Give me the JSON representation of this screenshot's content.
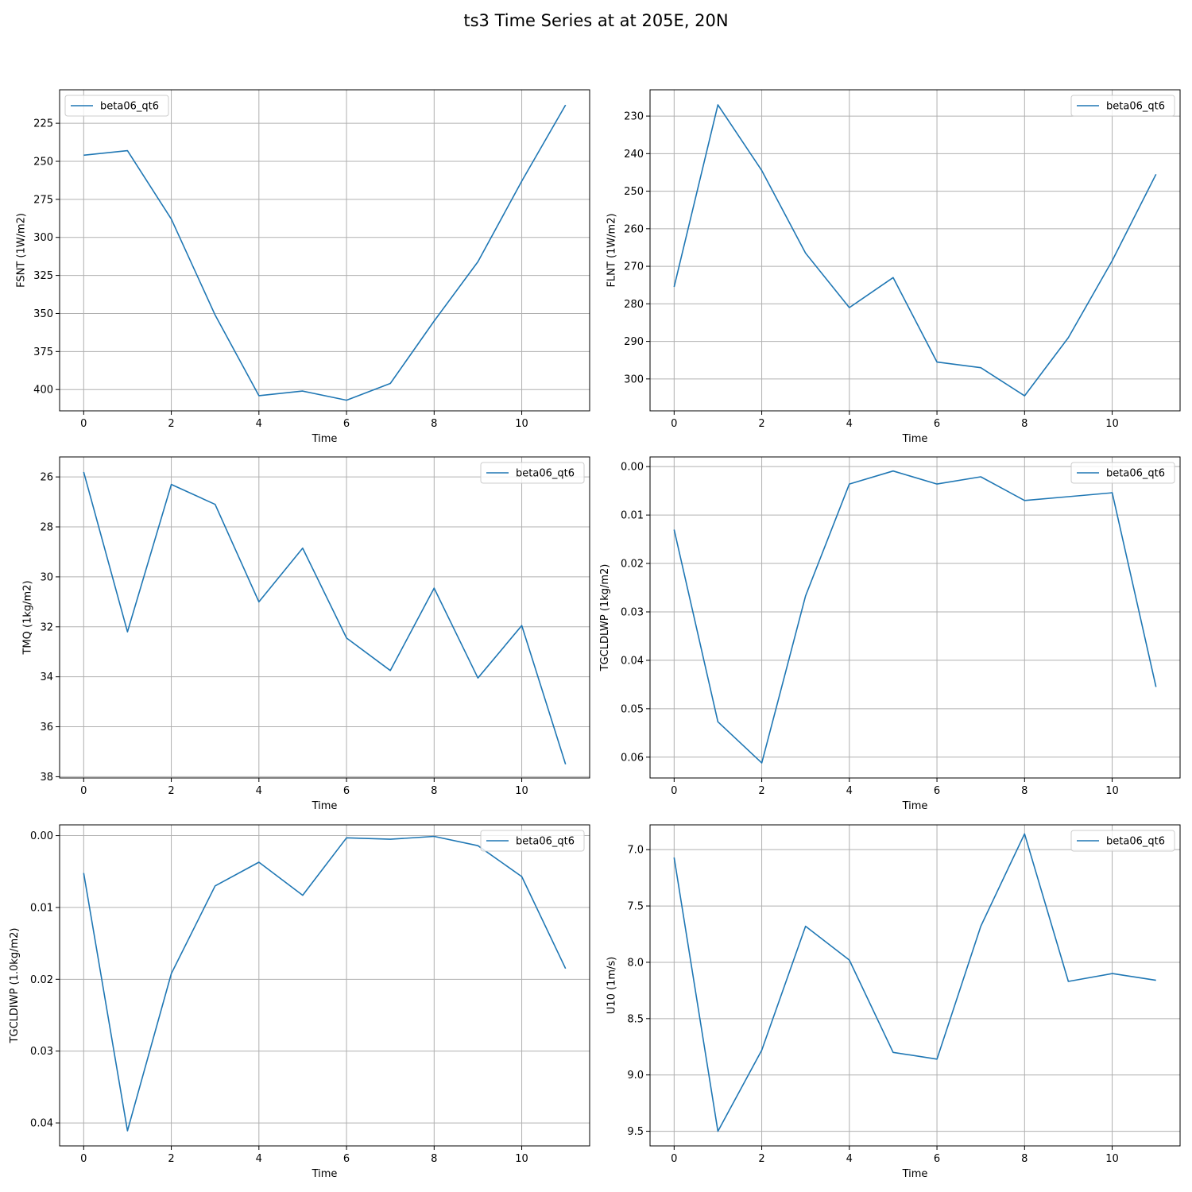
{
  "figure": {
    "title": "ts3 Time Series at at 205E, 20N"
  },
  "style": {
    "line_color": "#1f77b4",
    "grid_color": "#b0b0b0"
  },
  "chart_data": [
    {
      "type": "line",
      "xlabel": "Time",
      "ylabel": "FSNT (1W/m2)",
      "y_inverted": true,
      "grid": true,
      "legend_placement": "upper-left",
      "xlim": [
        -0.55,
        11.55
      ],
      "ylim": [
        414,
        203
      ],
      "xticks": [
        0,
        2,
        4,
        6,
        8,
        10
      ],
      "yticks": [
        225,
        250,
        275,
        300,
        325,
        350,
        375,
        400
      ],
      "series": [
        {
          "name": "beta06_qt6",
          "x": [
            0,
            1,
            2,
            3,
            4,
            5,
            6,
            7,
            8,
            9,
            10,
            11
          ],
          "y": [
            246,
            243,
            288,
            351,
            404,
            401,
            407,
            396,
            355,
            316,
            263,
            213
          ]
        }
      ]
    },
    {
      "type": "line",
      "xlabel": "Time",
      "ylabel": "FLNT (1W/m2)",
      "y_inverted": true,
      "grid": true,
      "legend_placement": "upper-right",
      "xlim": [
        -0.55,
        11.55
      ],
      "ylim": [
        308.5,
        223
      ],
      "xticks": [
        0,
        2,
        4,
        6,
        8,
        10
      ],
      "yticks": [
        230,
        240,
        250,
        260,
        270,
        280,
        290,
        300
      ],
      "series": [
        {
          "name": "beta06_qt6",
          "x": [
            0,
            1,
            2,
            3,
            4,
            5,
            6,
            7,
            8,
            9,
            10,
            11
          ],
          "y": [
            275.5,
            227,
            244.5,
            266.5,
            281,
            273,
            295.5,
            297,
            304.5,
            289,
            268.5,
            245.5
          ]
        }
      ]
    },
    {
      "type": "line",
      "xlabel": "Time",
      "ylabel": "TMQ (1kg/m2)",
      "y_inverted": true,
      "grid": true,
      "legend_placement": "upper-right",
      "xlim": [
        -0.55,
        11.55
      ],
      "ylim": [
        38.05,
        25.2
      ],
      "xticks": [
        0,
        2,
        4,
        6,
        8,
        10
      ],
      "yticks": [
        26,
        28,
        30,
        32,
        34,
        36,
        38
      ],
      "series": [
        {
          "name": "beta06_qt6",
          "x": [
            0,
            1,
            2,
            3,
            4,
            5,
            6,
            7,
            8,
            9,
            10,
            11
          ],
          "y": [
            25.8,
            32.2,
            26.3,
            27.1,
            31.0,
            28.85,
            32.45,
            33.75,
            30.45,
            34.05,
            31.95,
            37.5
          ]
        }
      ]
    },
    {
      "type": "line",
      "xlabel": "Time",
      "ylabel": "TGCLDLWP (1kg/m2)",
      "y_inverted": true,
      "grid": true,
      "legend_placement": "upper-right",
      "xlim": [
        -0.55,
        11.55
      ],
      "ylim": [
        0.0643,
        -0.002
      ],
      "xticks": [
        0,
        2,
        4,
        6,
        8,
        10
      ],
      "yticks": [
        0.0,
        0.01,
        0.02,
        0.03,
        0.04,
        0.05,
        0.06
      ],
      "ytick_labels": [
        "0.00",
        "0.01",
        "0.02",
        "0.03",
        "0.04",
        "0.05",
        "0.06"
      ],
      "series": [
        {
          "name": "beta06_qt6",
          "x": [
            0,
            1,
            2,
            3,
            4,
            5,
            6,
            7,
            8,
            9,
            10,
            11
          ],
          "y": [
            0.013,
            0.0527,
            0.0612,
            0.0267,
            0.0036,
            0.0009,
            0.0036,
            0.0021,
            0.007,
            0.0062,
            0.0054,
            0.0455
          ]
        }
      ]
    },
    {
      "type": "line",
      "xlabel": "Time",
      "ylabel": "TGCLDIWP (1.0kg/m2)",
      "y_inverted": true,
      "grid": true,
      "legend_placement": "upper-right",
      "xlim": [
        -0.55,
        11.55
      ],
      "ylim": [
        0.0432,
        -0.0015
      ],
      "xticks": [
        0,
        2,
        4,
        6,
        8,
        10
      ],
      "yticks": [
        0.0,
        0.01,
        0.02,
        0.03,
        0.04
      ],
      "ytick_labels": [
        "0.00",
        "0.01",
        "0.02",
        "0.03",
        "0.04"
      ],
      "series": [
        {
          "name": "beta06_qt6",
          "x": [
            0,
            1,
            2,
            3,
            4,
            5,
            6,
            7,
            8,
            9,
            10,
            11
          ],
          "y": [
            0.0052,
            0.0411,
            0.0192,
            0.007,
            0.0037,
            0.0083,
            0.0003,
            0.0005,
            0.0001,
            0.0014,
            0.0057,
            0.0185
          ]
        }
      ]
    },
    {
      "type": "line",
      "xlabel": "Time",
      "ylabel": "U10 (1m/s)",
      "y_inverted": true,
      "grid": true,
      "legend_placement": "upper-right",
      "xlim": [
        -0.55,
        11.55
      ],
      "ylim": [
        9.63,
        6.78
      ],
      "xticks": [
        0,
        2,
        4,
        6,
        8,
        10
      ],
      "yticks": [
        7.0,
        7.5,
        8.0,
        8.5,
        9.0,
        9.5
      ],
      "ytick_labels": [
        "7.0",
        "7.5",
        "8.0",
        "8.5",
        "9.0",
        "9.5"
      ],
      "series": [
        {
          "name": "beta06_qt6",
          "x": [
            0,
            1,
            2,
            3,
            4,
            5,
            6,
            7,
            8,
            9,
            10,
            11
          ],
          "y": [
            7.07,
            9.5,
            8.78,
            7.68,
            7.98,
            8.8,
            8.86,
            7.68,
            6.86,
            8.17,
            8.1,
            8.16
          ]
        }
      ]
    }
  ]
}
